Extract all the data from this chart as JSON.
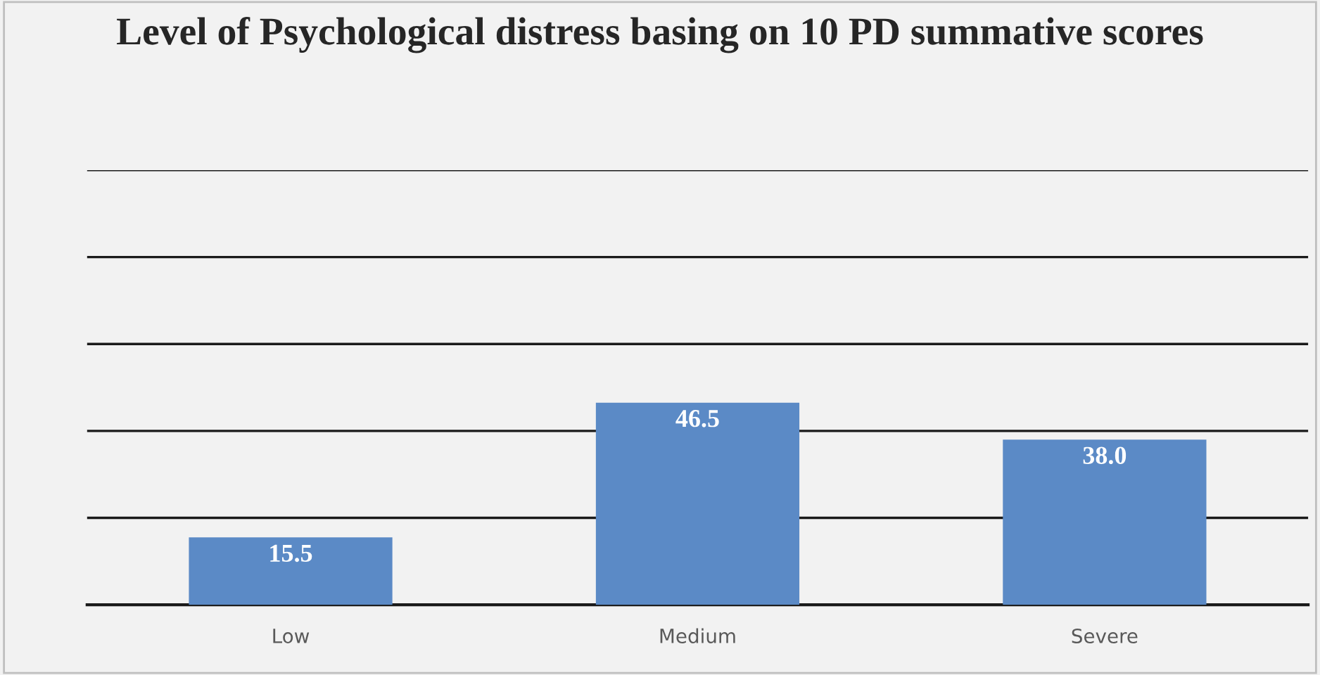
{
  "chart_data": {
    "type": "bar",
    "title": "Level of Psychological distress basing on 10 PD summative scores",
    "categories": [
      "Low",
      "Medium",
      "Severe"
    ],
    "values": [
      15.5,
      46.5,
      38.0
    ],
    "value_labels": [
      "15.5",
      "46.5",
      "38.0"
    ],
    "color": "#5b8ac6",
    "ylim": [
      0,
      100
    ],
    "yticks": [
      {
        "value": 0,
        "label": null
      },
      {
        "value": 20,
        "label": null
      },
      {
        "value": 40,
        "label": null
      },
      {
        "value": 60,
        "label": null
      },
      {
        "value": 80,
        "label": null
      },
      {
        "value": 100,
        "label": null
      }
    ],
    "tick_labels": "x",
    "grid": "y"
  }
}
